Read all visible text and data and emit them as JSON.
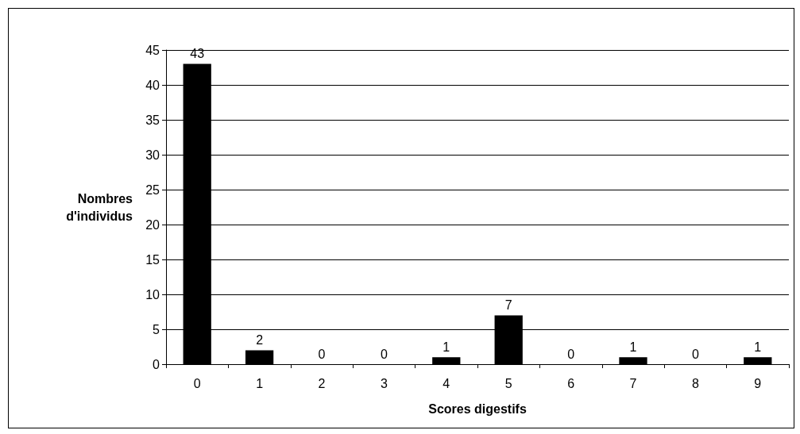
{
  "chart_data": {
    "type": "bar",
    "xlabel": "Scores digestifs",
    "ylabel": "Nombres d'individus",
    "categories": [
      "0",
      "1",
      "2",
      "3",
      "4",
      "5",
      "6",
      "7",
      "8",
      "9"
    ],
    "values": [
      43,
      2,
      0,
      0,
      1,
      7,
      0,
      1,
      0,
      1
    ],
    "color": "#000000",
    "ylim": [
      0,
      45
    ],
    "yticks": [
      0,
      5,
      10,
      15,
      20,
      25,
      30,
      35,
      40,
      45
    ],
    "grid": "y",
    "data_labels": true
  }
}
